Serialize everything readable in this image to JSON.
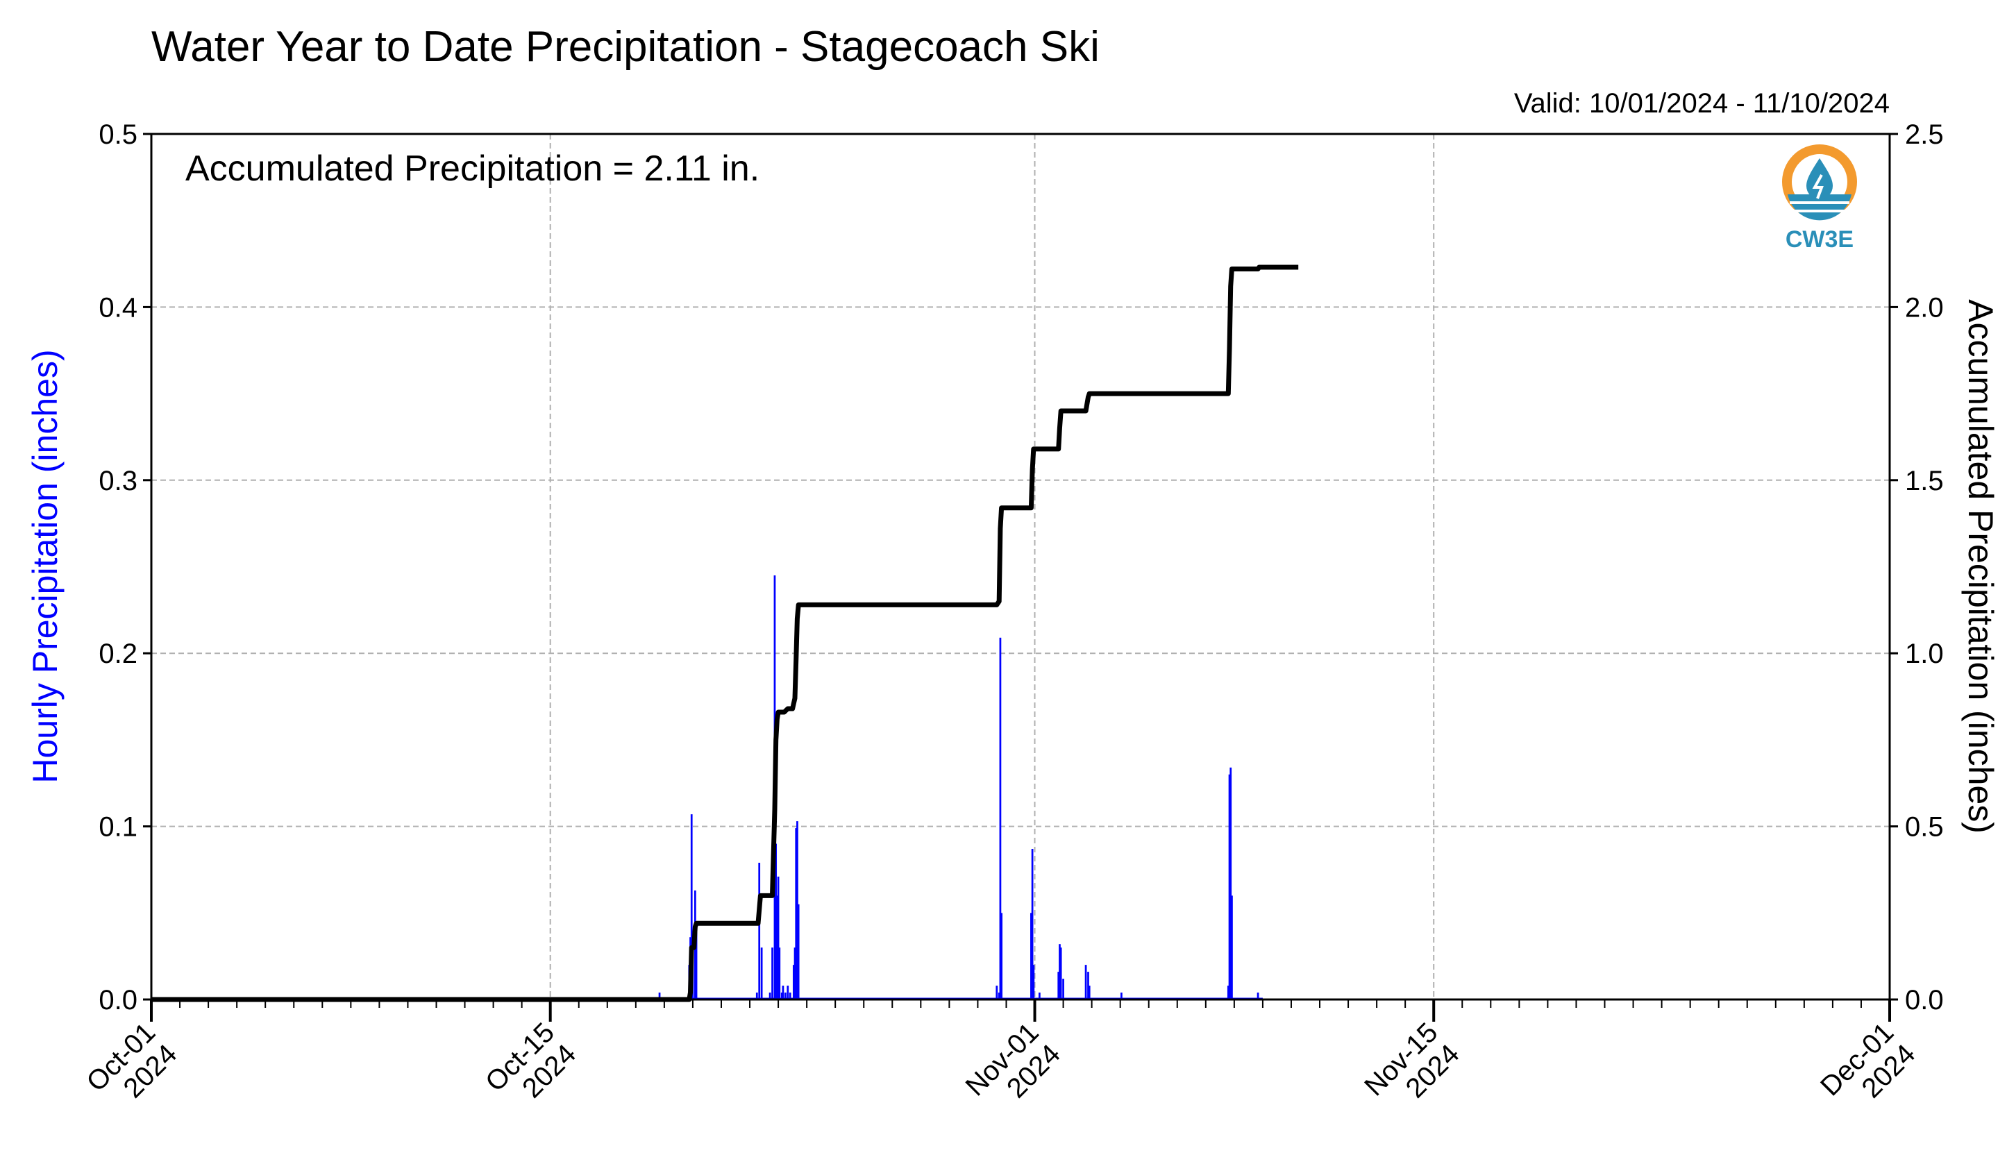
{
  "chart_data": {
    "type": "bar",
    "title": "Water Year to Date Precipitation - Stagecoach Ski",
    "subtitle": "Valid: 10/01/2024 - 11/10/2024",
    "annotation": "Accumulated Precipitation = 2.11 in.",
    "ylabel": "Hourly Precipitation (inches)",
    "ylabel_right": "Accumulated Precipitation (inches)",
    "ylim": [
      0,
      0.5
    ],
    "ylim_right": [
      0,
      2.5
    ],
    "xlim": [
      "2024-10-01",
      "2024-12-01"
    ],
    "grid": true,
    "y_ticks": [
      "0.0",
      "0.1",
      "0.2",
      "0.3",
      "0.4",
      "0.5"
    ],
    "y_ticks_right": [
      "0.0",
      "0.5",
      "1.0",
      "1.5",
      "2.0",
      "2.5"
    ],
    "x_ticks": [
      {
        "date": "2024-10-01",
        "line1": "Oct-01",
        "line2": "2024"
      },
      {
        "date": "2024-10-15",
        "line1": "Oct-15",
        "line2": "2024"
      },
      {
        "date": "2024-11-01",
        "line1": "Nov-01",
        "line2": "2024"
      },
      {
        "date": "2024-11-15",
        "line1": "Nov-15",
        "line2": "2024"
      },
      {
        "date": "2024-12-01",
        "line1": "Dec-01",
        "line2": "2024"
      }
    ],
    "series": [
      {
        "type": "bar",
        "color": "#0000ff",
        "values": [
          [
            "2024-10-18T20:00",
            0.004
          ],
          [
            "2024-10-19T21:00",
            0.02
          ],
          [
            "2024-10-19T22:00",
            0.036
          ],
          [
            "2024-10-19T23:00",
            0.107
          ],
          [
            "2024-10-20T00:00",
            0.03
          ],
          [
            "2024-10-20T02:00",
            0.063
          ],
          [
            "2024-10-20T03:00",
            0.04
          ],
          [
            "2024-10-22T06:00",
            0.004
          ],
          [
            "2024-10-22T08:00",
            0.079
          ],
          [
            "2024-10-22T10:00",
            0.03
          ],
          [
            "2024-10-22T17:00",
            0.004
          ],
          [
            "2024-10-22T19:00",
            0.03
          ],
          [
            "2024-10-22T21:00",
            0.245
          ],
          [
            "2024-10-22T22:00",
            0.09
          ],
          [
            "2024-10-22T23:00",
            0.06
          ],
          [
            "2024-10-23T00:00",
            0.071
          ],
          [
            "2024-10-23T01:00",
            0.03
          ],
          [
            "2024-10-23T03:00",
            0.004
          ],
          [
            "2024-10-23T04:00",
            0.008
          ],
          [
            "2024-10-23T06:00",
            0.004
          ],
          [
            "2024-10-23T08:00",
            0.008
          ],
          [
            "2024-10-23T10:00",
            0.004
          ],
          [
            "2024-10-23T13:00",
            0.02
          ],
          [
            "2024-10-23T14:00",
            0.03
          ],
          [
            "2024-10-23T15:00",
            0.099
          ],
          [
            "2024-10-23T16:00",
            0.103
          ],
          [
            "2024-10-23T17:00",
            0.055
          ],
          [
            "2024-10-30T16:00",
            0.008
          ],
          [
            "2024-10-30T18:00",
            0.004
          ],
          [
            "2024-10-30T19:00",
            0.209
          ],
          [
            "2024-10-30T20:00",
            0.05
          ],
          [
            "2024-10-31T21:00",
            0.05
          ],
          [
            "2024-10-31T22:00",
            0.087
          ],
          [
            "2024-10-31T23:00",
            0.02
          ],
          [
            "2024-11-01T04:00",
            0.004
          ],
          [
            "2024-11-01T20:00",
            0.016
          ],
          [
            "2024-11-01T21:00",
            0.032
          ],
          [
            "2024-11-01T22:00",
            0.03
          ],
          [
            "2024-11-02T00:00",
            0.012
          ],
          [
            "2024-11-02T19:00",
            0.02
          ],
          [
            "2024-11-02T21:00",
            0.016
          ],
          [
            "2024-11-02T22:00",
            0.008
          ],
          [
            "2024-11-04T01:00",
            0.004
          ],
          [
            "2024-11-07T19:00",
            0.008
          ],
          [
            "2024-11-07T20:00",
            0.13
          ],
          [
            "2024-11-07T21:00",
            0.134
          ],
          [
            "2024-11-07T22:00",
            0.06
          ],
          [
            "2024-11-08T20:00",
            0.004
          ]
        ]
      },
      {
        "type": "line",
        "axis": "right",
        "color": "#000000",
        "values": [
          [
            "2024-10-01T00:00",
            0.0
          ],
          [
            "2024-10-19T21:00",
            0.0
          ],
          [
            "2024-10-19T22:00",
            0.02
          ],
          [
            "2024-10-19T23:00",
            0.15
          ],
          [
            "2024-10-20T01:00",
            0.15
          ],
          [
            "2024-10-20T02:00",
            0.21
          ],
          [
            "2024-10-20T03:00",
            0.22
          ],
          [
            "2024-10-22T07:00",
            0.22
          ],
          [
            "2024-10-22T08:00",
            0.26
          ],
          [
            "2024-10-22T09:00",
            0.3
          ],
          [
            "2024-10-22T19:00",
            0.3
          ],
          [
            "2024-10-22T21:00",
            0.55
          ],
          [
            "2024-10-22T22:00",
            0.75
          ],
          [
            "2024-10-22T23:00",
            0.81
          ],
          [
            "2024-10-23T00:00",
            0.83
          ],
          [
            "2024-10-23T05:00",
            0.83
          ],
          [
            "2024-10-23T08:00",
            0.84
          ],
          [
            "2024-10-23T12:00",
            0.84
          ],
          [
            "2024-10-23T14:00",
            0.87
          ],
          [
            "2024-10-23T15:00",
            0.98
          ],
          [
            "2024-10-23T16:00",
            1.1
          ],
          [
            "2024-10-23T17:00",
            1.14
          ],
          [
            "2024-10-30T16:00",
            1.14
          ],
          [
            "2024-10-30T18:00",
            1.15
          ],
          [
            "2024-10-30T19:00",
            1.36
          ],
          [
            "2024-10-30T20:00",
            1.42
          ],
          [
            "2024-10-31T21:00",
            1.42
          ],
          [
            "2024-10-31T22:00",
            1.53
          ],
          [
            "2024-10-31T23:00",
            1.59
          ],
          [
            "2024-11-01T20:00",
            1.59
          ],
          [
            "2024-11-01T21:00",
            1.65
          ],
          [
            "2024-11-01T22:00",
            1.7
          ],
          [
            "2024-11-02T19:00",
            1.7
          ],
          [
            "2024-11-02T21:00",
            1.74
          ],
          [
            "2024-11-02T22:00",
            1.75
          ],
          [
            "2024-11-07T19:00",
            1.75
          ],
          [
            "2024-11-07T20:00",
            1.88
          ],
          [
            "2024-11-07T21:00",
            2.06
          ],
          [
            "2024-11-07T22:00",
            2.11
          ],
          [
            "2024-11-08T20:00",
            2.11
          ],
          [
            "2024-11-08T21:00",
            2.115
          ],
          [
            "2024-11-10T06:00",
            2.115
          ]
        ]
      }
    ]
  },
  "logo": {
    "text": "CW3E",
    "ring_color": "#f39a2e",
    "water_color": "#2a8fb8"
  }
}
